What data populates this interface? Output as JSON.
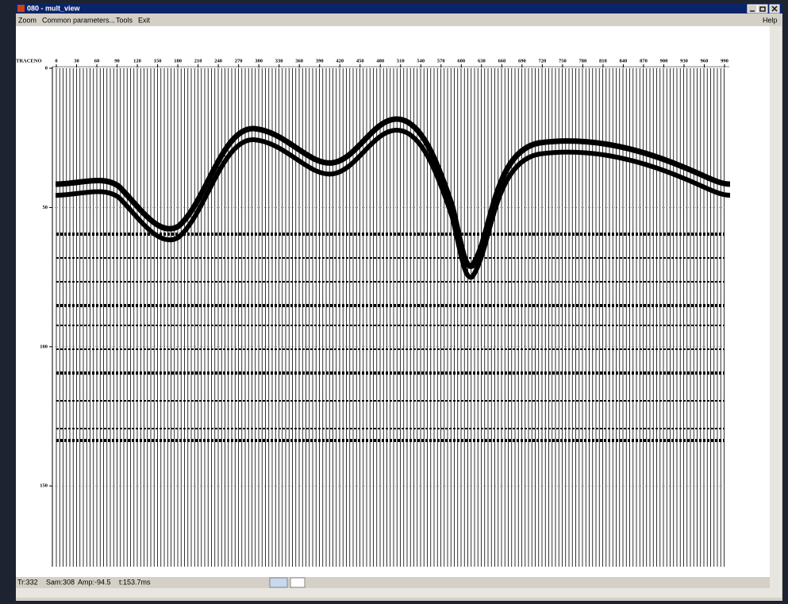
{
  "window": {
    "title": "080 - mult_view"
  },
  "menu": [
    "Zoom",
    "Common parameters...",
    "Tools",
    "Exit"
  ],
  "help": "Help",
  "plot": {
    "x_label": "TRACENO",
    "xlim": [
      0,
      990
    ],
    "xticks": [
      0,
      30,
      60,
      90,
      120,
      150,
      180,
      210,
      240,
      270,
      300,
      330,
      360,
      390,
      420,
      450,
      480,
      510,
      540,
      570,
      600,
      630,
      660,
      690,
      720,
      750,
      780,
      810,
      840,
      870,
      900,
      930,
      960,
      990
    ],
    "ylim": [
      0,
      179
    ],
    "yticks": [
      0,
      50,
      100,
      150
    ]
  },
  "status": [
    "Tr:332",
    "Sam:308",
    "Amp:-94.5",
    "t:153.7ms"
  ]
}
